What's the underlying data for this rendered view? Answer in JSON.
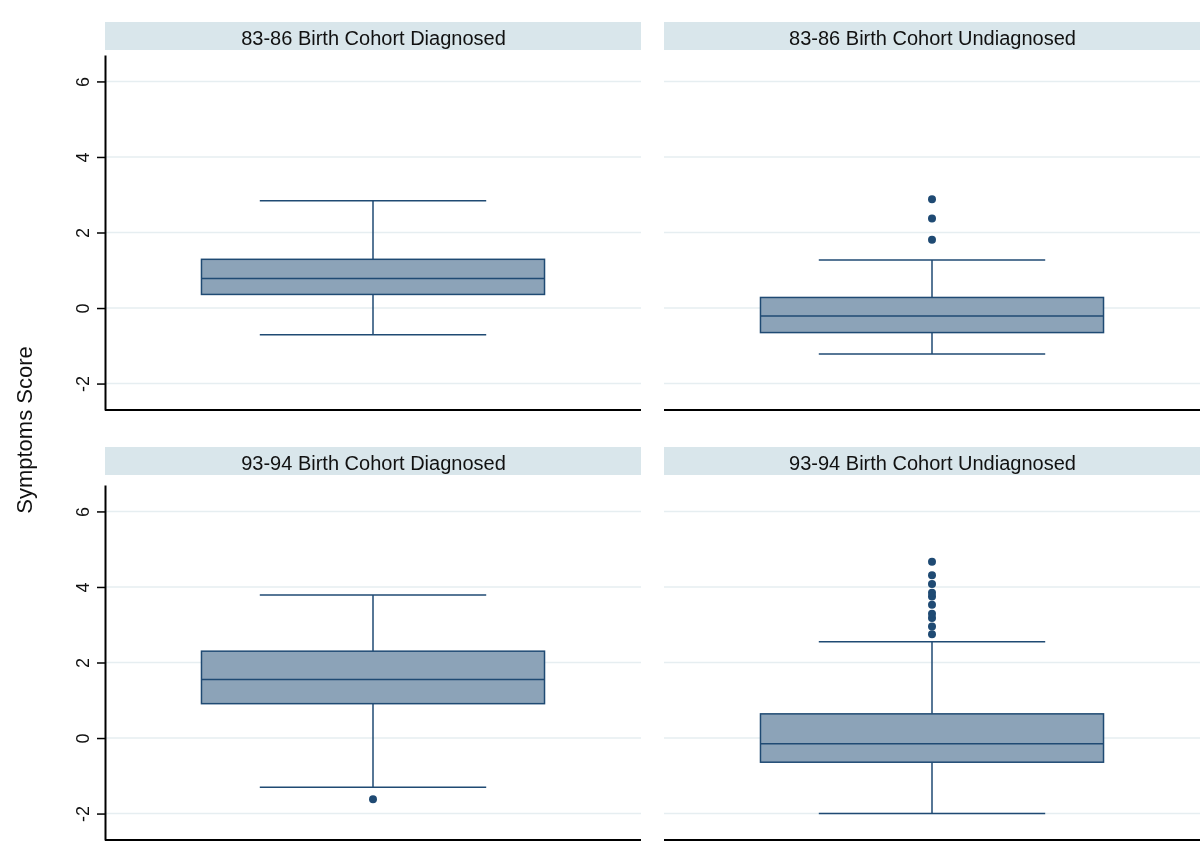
{
  "chart_data": [
    {
      "type": "box",
      "ylabel": "Symptoms Score",
      "categories": [
        "83-86 Birth Cohort Diagnosed",
        "83-86 Birth Cohort Undiagnosed"
      ],
      "color": "#8ca3b8",
      "boxes": [
        {
          "low": -0.71,
          "q1": 0.36,
          "median": 0.78,
          "q3": 1.29,
          "high": 2.84
        },
        {
          "low": -1.22,
          "q1": -0.65,
          "median": -0.21,
          "q3": 0.28,
          "high": 1.27,
          "outliers": [
            1.81,
            2.37,
            2.88
          ]
        }
      ],
      "ylim": [
        -2.7,
        6.7
      ],
      "yticks": [
        -2,
        0,
        2,
        4,
        6
      ],
      "grid": "y"
    },
    {
      "type": "box",
      "categories": [
        "93-94 Birth Cohort Diagnosed",
        "93-94 Birth Cohort Undiagnosed"
      ],
      "color": "#8ca3b8",
      "boxes": [
        {
          "low": -1.3,
          "q1": 0.91,
          "median": 1.55,
          "q3": 2.3,
          "high": 3.79,
          "outliers": [
            -1.62
          ]
        },
        {
          "low": -2.0,
          "q1": -0.64,
          "median": -0.15,
          "q3": 0.64,
          "high": 2.55,
          "outliers": [
            2.75,
            2.95,
            3.18,
            3.29,
            3.53,
            3.75,
            3.85,
            4.08,
            4.31,
            4.67
          ]
        }
      ],
      "ylim": [
        -2.7,
        6.7
      ],
      "yticks": [
        -2,
        0,
        2,
        4,
        6
      ],
      "grid": "y"
    }
  ]
}
